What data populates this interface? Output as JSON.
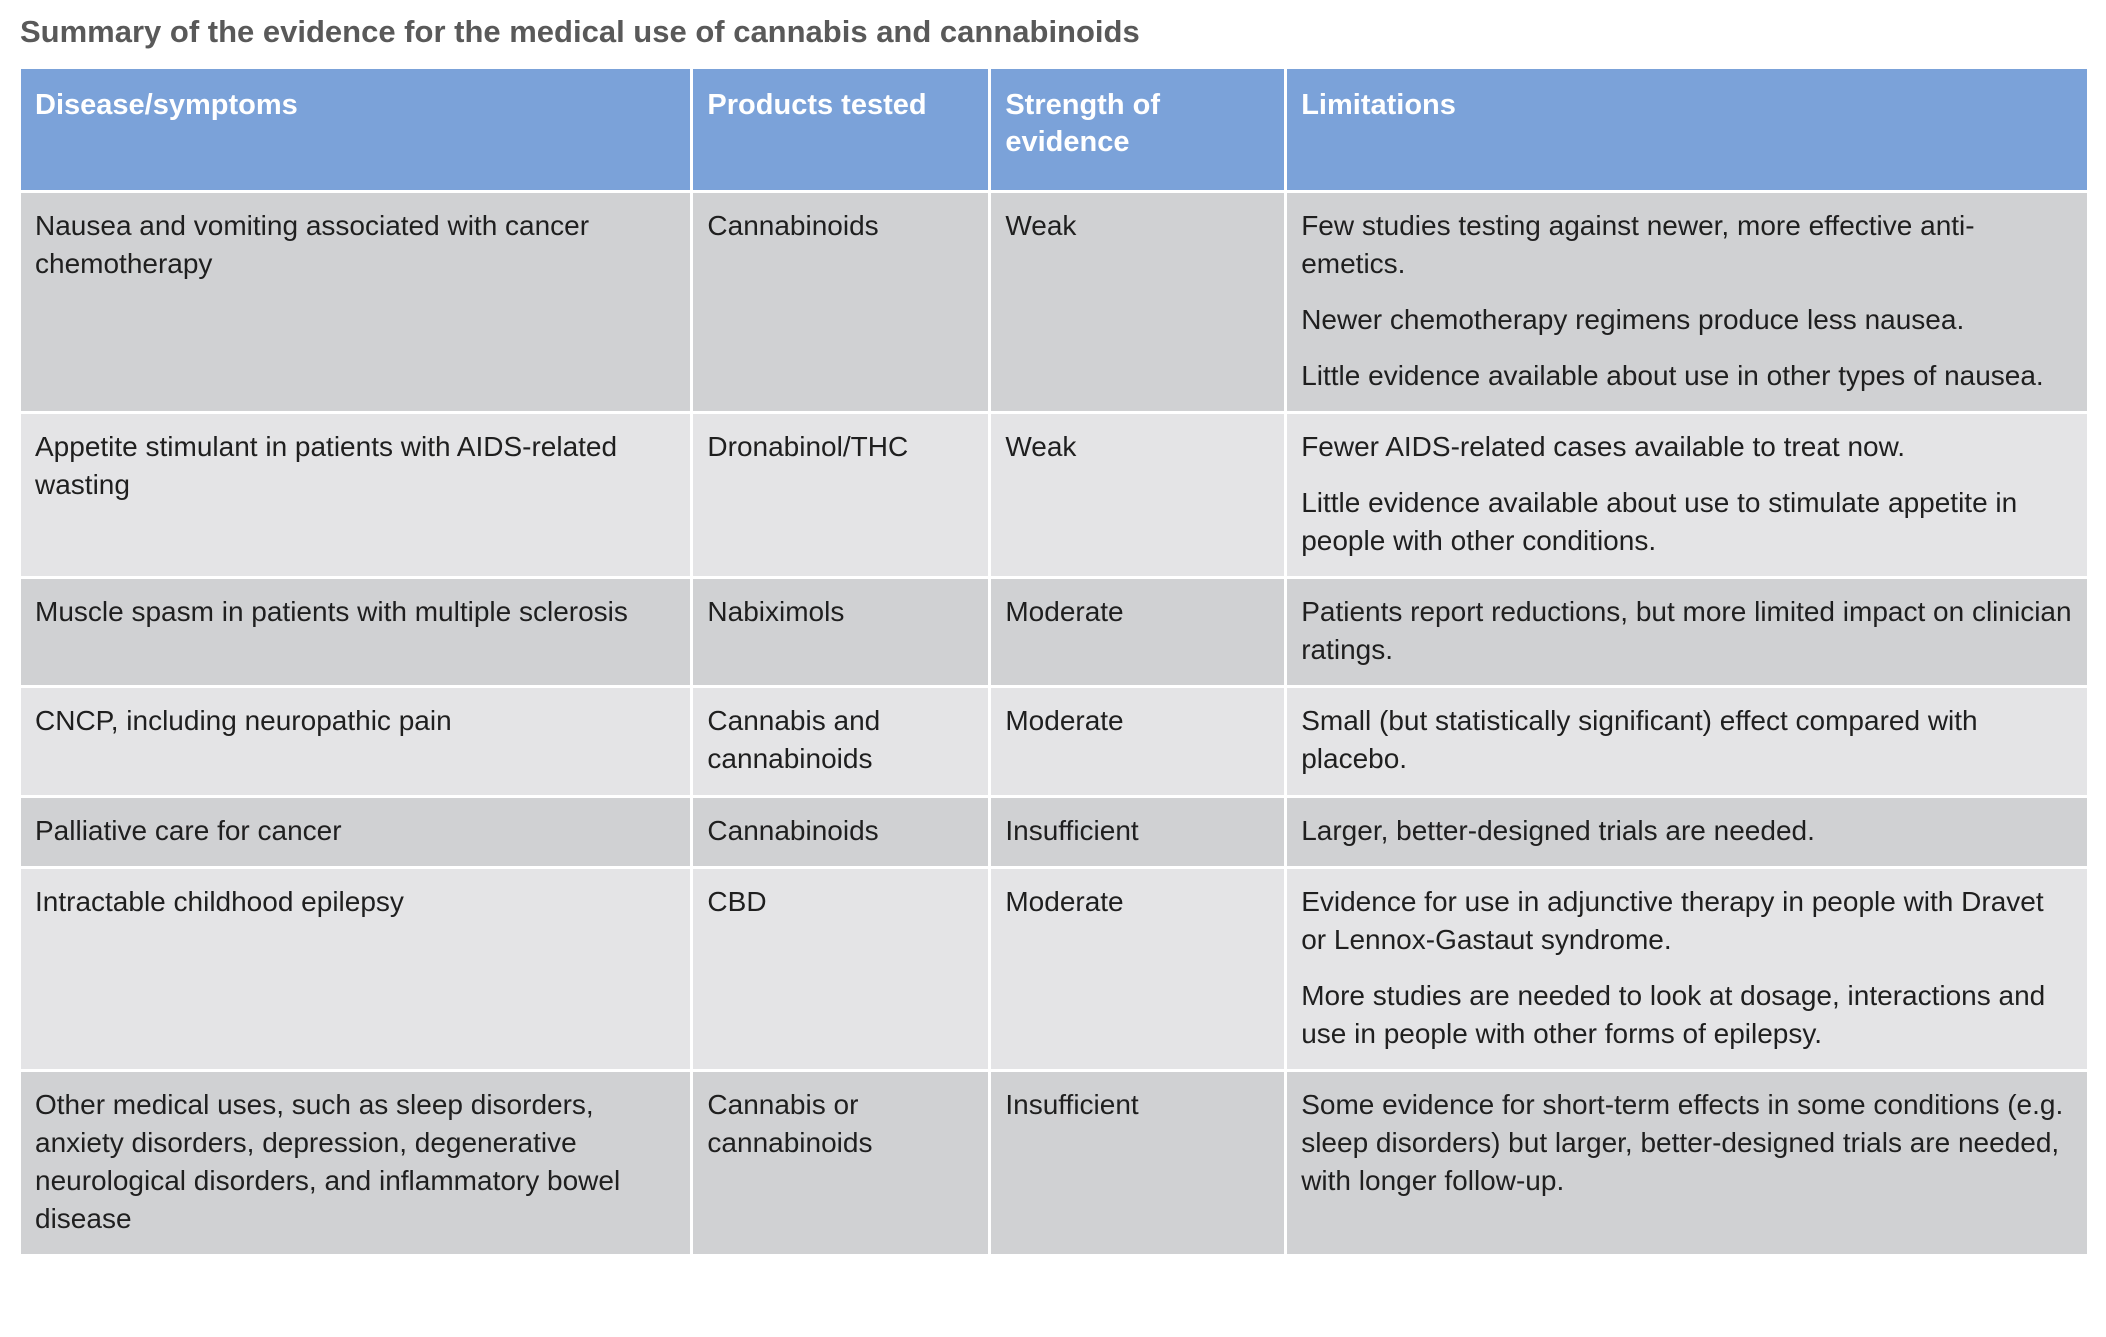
{
  "title": "Summary of the evidence for the medical use of cannabis and cannabinoids",
  "colors": {
    "header_bg": "#7BA2D9",
    "header_text": "#FFFFFF",
    "row_dark_bg": "#D0D1D3",
    "row_light_bg": "#E4E4E6",
    "body_text": "#1F1F1F",
    "title_text": "#595959",
    "grid_line": "#FFFFFF"
  },
  "table": {
    "columns": [
      "Disease/symptoms",
      "Products tested",
      "Strength of evidence",
      "Limitations"
    ],
    "rows": [
      {
        "disease": "Nausea and vomiting associated with cancer chemotherapy",
        "products": "Cannabinoids",
        "strength": "Weak",
        "limitations": [
          "Few studies testing against newer, more effective anti-emetics.",
          "Newer chemotherapy regimens produce less nausea.",
          "Little evidence available about use in other types of nausea."
        ]
      },
      {
        "disease": "Appetite stimulant in patients with AIDS-related wasting",
        "products": "Dronabinol/THC",
        "strength": "Weak",
        "limitations": [
          "Fewer AIDS-related cases available to treat now.",
          "Little evidence available about use to stimulate appetite in people with other conditions."
        ]
      },
      {
        "disease": "Muscle spasm in patients with multiple sclerosis",
        "products": "Nabiximols",
        "strength": "Moderate",
        "limitations": [
          "Patients report reductions, but more limited impact on clinician ratings."
        ]
      },
      {
        "disease": "CNCP, including neuropathic pain",
        "products": "Cannabis and cannabinoids",
        "strength": "Moderate",
        "limitations": [
          "Small (but statistically significant) effect compared with placebo."
        ]
      },
      {
        "disease": "Palliative care for cancer",
        "products": "Cannabinoids",
        "strength": "Insufficient",
        "limitations": [
          "Larger, better-designed trials are needed."
        ]
      },
      {
        "disease": "Intractable childhood epilepsy",
        "products": "CBD",
        "strength": "Moderate",
        "limitations": [
          "Evidence for use in adjunctive therapy in people with Dravet or Lennox-Gastaut syndrome.",
          "More studies are needed to look at dosage, interactions and use in people with other forms of epilepsy."
        ]
      },
      {
        "disease": "Other medical uses, such as sleep disorders, anxiety disorders, depression, degenerative neurological disorders, and inflammatory bowel disease",
        "products": "Cannabis or cannabinoids",
        "strength": "Insufficient",
        "limitations": [
          "Some evidence for short-term effects in some conditions (e.g. sleep disorders) but larger, better-designed trials are needed, with longer follow-up."
        ]
      }
    ]
  }
}
